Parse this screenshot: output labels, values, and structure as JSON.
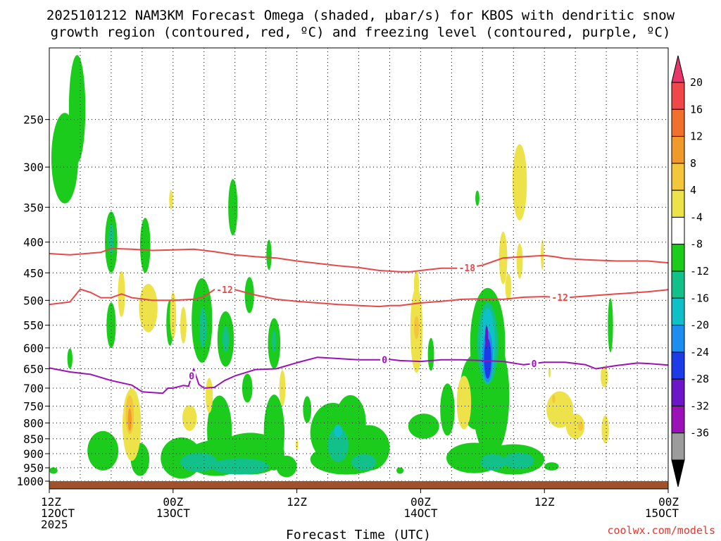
{
  "title_line1": "2025101212 NAM3KM Forecast Omega (shaded, μbar/s) for KBOS with dendritic snow",
  "title_line2": "growth region (contoured, red, ºC) and freezing level (contoured, purple, ºC)",
  "credit": "coolwx.com/models",
  "chart_data": {
    "type": "heatmap",
    "title": "2025101212 NAM3KM Forecast Omega (shaded, μbar/s) for KBOS with dendritic snow growth region (contoured, red, ºC) and freezing level (contoured, purple, ºC)",
    "xlabel": "Forecast Time (UTC)",
    "ylabel": "",
    "x_unit": "forecast hour",
    "xlim": [
      0,
      60
    ],
    "y_unit": "hPa",
    "ylim": [
      1030,
      190
    ],
    "y_scale": "log",
    "grid": true,
    "x_ticks": [
      {
        "hour": 0,
        "line1": "12Z",
        "line2": "12OCT",
        "line3": "2025"
      },
      {
        "hour": 12,
        "line1": "00Z",
        "line2": "13OCT",
        "line3": ""
      },
      {
        "hour": 24,
        "line1": "12Z",
        "line2": "",
        "line3": ""
      },
      {
        "hour": 36,
        "line1": "00Z",
        "line2": "14OCT",
        "line3": ""
      },
      {
        "hour": 48,
        "line1": "12Z",
        "line2": "",
        "line3": ""
      },
      {
        "hour": 60,
        "line1": "00Z",
        "line2": "15OCT",
        "line3": ""
      }
    ],
    "y_ticks": [
      250,
      300,
      350,
      400,
      450,
      500,
      550,
      600,
      650,
      700,
      750,
      800,
      850,
      900,
      950,
      1000
    ],
    "colorbar": {
      "unit": "μbar/s",
      "labels": [
        "20",
        "16",
        "12",
        "8",
        "4",
        "-4",
        "-8",
        "-12",
        "-16",
        "-20",
        "-24",
        "-28",
        "-32",
        "-36"
      ],
      "colors": [
        "#e8356a",
        "#f04848",
        "#f2702e",
        "#f09a2c",
        "#f4c63c",
        "#eee24a",
        "#ffffff",
        "#1ccc1c",
        "#12c08a",
        "#10c0c8",
        "#1c8ef0",
        "#1c3ce8",
        "#6c16c8",
        "#9c10b8",
        "#9c9c9c",
        "#000000"
      ]
    },
    "contours": [
      {
        "label": "-18",
        "color": "#e84848",
        "points": [
          [
            0,
            418
          ],
          [
            2,
            420
          ],
          [
            5,
            416
          ],
          [
            6,
            410
          ],
          [
            8,
            411
          ],
          [
            10,
            413
          ],
          [
            12,
            412
          ],
          [
            14,
            411
          ],
          [
            16,
            415
          ],
          [
            18,
            420
          ],
          [
            20,
            423
          ],
          [
            22,
            425
          ],
          [
            24,
            430
          ],
          [
            26,
            434
          ],
          [
            28,
            438
          ],
          [
            30,
            441
          ],
          [
            32,
            446
          ],
          [
            34,
            448
          ],
          [
            35,
            448
          ],
          [
            36,
            446
          ],
          [
            38,
            442
          ],
          [
            40,
            442
          ],
          [
            41,
            440
          ],
          [
            42,
            437
          ],
          [
            44,
            425
          ],
          [
            46,
            423
          ],
          [
            48,
            421
          ],
          [
            49,
            423
          ],
          [
            50,
            426
          ],
          [
            52,
            428
          ],
          [
            55,
            430
          ],
          [
            58,
            430
          ],
          [
            60,
            433
          ]
        ]
      },
      {
        "label": "-12",
        "color": "#e84848",
        "points": [
          [
            0,
            508
          ],
          [
            2,
            503
          ],
          [
            3,
            479
          ],
          [
            4,
            485
          ],
          [
            5,
            495
          ],
          [
            6,
            495
          ],
          [
            7,
            488
          ],
          [
            8,
            495
          ],
          [
            10,
            500
          ],
          [
            12,
            500
          ],
          [
            14,
            498
          ],
          [
            15,
            493
          ],
          [
            16,
            480
          ],
          [
            18,
            480
          ],
          [
            20,
            490
          ],
          [
            22,
            498
          ],
          [
            24,
            502
          ],
          [
            26,
            505
          ],
          [
            28,
            508
          ],
          [
            30,
            510
          ],
          [
            32,
            512
          ],
          [
            33,
            510
          ],
          [
            34,
            510
          ],
          [
            36,
            505
          ],
          [
            38,
            502
          ],
          [
            40,
            498
          ],
          [
            42,
            497
          ],
          [
            44,
            498
          ],
          [
            46,
            494
          ],
          [
            48,
            493
          ],
          [
            50,
            495
          ],
          [
            52,
            492
          ],
          [
            55,
            488
          ],
          [
            58,
            484
          ],
          [
            60,
            480
          ]
        ]
      },
      {
        "label": "0",
        "color": "#9c10b8",
        "points": [
          [
            0,
            648
          ],
          [
            2,
            658
          ],
          [
            4,
            664
          ],
          [
            6,
            680
          ],
          [
            8,
            692
          ],
          [
            9,
            710
          ],
          [
            10,
            712
          ],
          [
            11,
            714
          ],
          [
            11.5,
            700
          ],
          [
            12,
            700
          ],
          [
            13,
            693
          ],
          [
            13.5,
            695
          ],
          [
            14,
            650
          ],
          [
            14.5,
            690
          ],
          [
            15,
            700
          ],
          [
            16,
            698
          ],
          [
            17,
            680
          ],
          [
            18,
            668
          ],
          [
            20,
            652
          ],
          [
            22,
            650
          ],
          [
            24,
            635
          ],
          [
            26,
            622
          ],
          [
            28,
            625
          ],
          [
            30,
            628
          ],
          [
            32,
            628
          ],
          [
            33,
            627
          ],
          [
            34,
            630
          ],
          [
            36,
            632
          ],
          [
            38,
            628
          ],
          [
            40,
            628
          ],
          [
            42,
            630
          ],
          [
            44,
            632
          ],
          [
            46,
            640
          ],
          [
            48,
            634
          ],
          [
            50,
            634
          ],
          [
            52,
            640
          ],
          [
            53,
            650
          ],
          [
            55,
            642
          ],
          [
            57,
            636
          ],
          [
            58,
            637
          ],
          [
            60,
            641
          ]
        ]
      }
    ],
    "omega_regions": [
      {
        "value": -6,
        "hour": 1.5,
        "p": 290,
        "dh": 1.3,
        "dp": 55
      },
      {
        "value": -6,
        "hour": 2.7,
        "p": 240,
        "dh": 0.8,
        "dp": 55
      },
      {
        "value": -6,
        "hour": 6.0,
        "p": 400,
        "dh": 0.6,
        "dp": 50
      },
      {
        "value": -12,
        "hour": 6.0,
        "p": 395,
        "dh": 0.25,
        "dp": 25
      },
      {
        "value": -6,
        "hour": 9.3,
        "p": 405,
        "dh": 0.5,
        "dp": 45
      },
      {
        "value": -6,
        "hour": 17.8,
        "p": 350,
        "dh": 0.45,
        "dp": 40
      },
      {
        "value": -6,
        "hour": 21.3,
        "p": 420,
        "dh": 0.25,
        "dp": 25
      },
      {
        "value": -6,
        "hour": 6.0,
        "p": 550,
        "dh": 0.45,
        "dp": 50
      },
      {
        "value": -6,
        "hour": 11.7,
        "p": 545,
        "dh": 0.35,
        "dp": 50
      },
      {
        "value": -6,
        "hour": 14.8,
        "p": 540,
        "dh": 1.0,
        "dp": 95
      },
      {
        "value": -12,
        "hour": 14.9,
        "p": 555,
        "dh": 0.35,
        "dp": 45
      },
      {
        "value": -6,
        "hour": 17.1,
        "p": 580,
        "dh": 0.8,
        "dp": 65
      },
      {
        "value": -12,
        "hour": 17.1,
        "p": 580,
        "dh": 0.3,
        "dp": 30
      },
      {
        "value": -6,
        "hour": 19.4,
        "p": 490,
        "dh": 0.45,
        "dp": 35
      },
      {
        "value": -6,
        "hour": 19.2,
        "p": 700,
        "dh": 0.5,
        "dp": 40
      },
      {
        "value": -6,
        "hour": 21.8,
        "p": 590,
        "dh": 0.6,
        "dp": 60
      },
      {
        "value": -12,
        "hour": 21.8,
        "p": 585,
        "dh": 0.2,
        "dp": 25
      },
      {
        "value": -6,
        "hour": 2.0,
        "p": 625,
        "dh": 0.25,
        "dp": 25
      },
      {
        "value": -6,
        "hour": 37.0,
        "p": 615,
        "dh": 0.3,
        "dp": 40
      },
      {
        "value": -6,
        "hour": 5.2,
        "p": 890,
        "dh": 1.5,
        "dp": 70
      },
      {
        "value": -6,
        "hour": 8.8,
        "p": 920,
        "dh": 0.9,
        "dp": 60
      },
      {
        "value": -6,
        "hour": 0.4,
        "p": 960,
        "dh": 0.4,
        "dp": 12
      },
      {
        "value": -6,
        "hour": 12.8,
        "p": 915,
        "dh": 2.0,
        "dp": 75
      },
      {
        "value": -6,
        "hour": 16.2,
        "p": 915,
        "dh": 3.0,
        "dp": 65
      },
      {
        "value": -6,
        "hour": 16.5,
        "p": 825,
        "dh": 1.2,
        "dp": 120
      },
      {
        "value": -6,
        "hour": 19.5,
        "p": 900,
        "dh": 3.3,
        "dp": 75
      },
      {
        "value": -6,
        "hour": 21.8,
        "p": 830,
        "dh": 1.0,
        "dp": 130
      },
      {
        "value": -6,
        "hour": 23.0,
        "p": 945,
        "dh": 1.0,
        "dp": 40
      },
      {
        "value": -12,
        "hour": 14.5,
        "p": 930,
        "dh": 1.8,
        "dp": 35
      },
      {
        "value": -12,
        "hour": 18.5,
        "p": 945,
        "dh": 2.8,
        "dp": 30
      },
      {
        "value": -6,
        "hour": 27.5,
        "p": 830,
        "dh": 2.2,
        "dp": 100
      },
      {
        "value": -6,
        "hour": 29.2,
        "p": 800,
        "dh": 1.5,
        "dp": 90
      },
      {
        "value": -6,
        "hour": 28.8,
        "p": 920,
        "dh": 3.5,
        "dp": 55
      },
      {
        "value": -6,
        "hour": 25.0,
        "p": 760,
        "dh": 0.4,
        "dp": 40
      },
      {
        "value": -6,
        "hour": 31.0,
        "p": 880,
        "dh": 2.0,
        "dp": 80
      },
      {
        "value": -12,
        "hour": 28.0,
        "p": 870,
        "dh": 1.0,
        "dp": 60
      },
      {
        "value": -12,
        "hour": 30.5,
        "p": 930,
        "dh": 1.2,
        "dp": 30
      },
      {
        "value": -16,
        "hour": 28.0,
        "p": 825,
        "dh": 0.4,
        "dp": 20
      },
      {
        "value": -6,
        "hour": 34.0,
        "p": 960,
        "dh": 0.35,
        "dp": 12
      },
      {
        "value": -6,
        "hour": 36.3,
        "p": 810,
        "dh": 1.5,
        "dp": 40
      },
      {
        "value": -6,
        "hour": 38.6,
        "p": 760,
        "dh": 0.7,
        "dp": 80
      },
      {
        "value": -6,
        "hour": 41.3,
        "p": 710,
        "dh": 1.5,
        "dp": 110
      },
      {
        "value": -6,
        "hour": 42.8,
        "p": 720,
        "dh": 1.8,
        "dp": 190
      },
      {
        "value": -6,
        "hour": 41.2,
        "p": 915,
        "dh": 2.7,
        "dp": 55
      },
      {
        "value": -6,
        "hour": 45.0,
        "p": 920,
        "dh": 3.0,
        "dp": 55
      },
      {
        "value": -12,
        "hour": 43.0,
        "p": 930,
        "dh": 1.2,
        "dp": 30
      },
      {
        "value": -12,
        "hour": 45.5,
        "p": 925,
        "dh": 1.5,
        "dp": 30
      },
      {
        "value": -6,
        "hour": 41.5,
        "p": 338,
        "dh": 0.2,
        "dp": 10
      },
      {
        "value": -6,
        "hour": 48.7,
        "p": 945,
        "dh": 0.7,
        "dp": 15
      },
      {
        "value": -6,
        "hour": 54.4,
        "p": 550,
        "dh": 0.25,
        "dp": 60
      },
      {
        "value": -6,
        "hour": 42.5,
        "p": 590,
        "dh": 1.7,
        "dp": 140
      },
      {
        "value": -12,
        "hour": 42.5,
        "p": 590,
        "dh": 1.0,
        "dp": 100
      },
      {
        "value": -16,
        "hour": 42.5,
        "p": 590,
        "dh": 0.7,
        "dp": 85
      },
      {
        "value": -20,
        "hour": 42.5,
        "p": 620,
        "dh": 0.5,
        "dp": 65
      },
      {
        "value": -24,
        "hour": 42.5,
        "p": 625,
        "dh": 0.35,
        "dp": 50
      },
      {
        "value": -28,
        "hour": 42.4,
        "p": 575,
        "dh": 0.15,
        "dp": 25
      },
      {
        "value": 6,
        "hour": 11.8,
        "p": 340,
        "dh": 0.18,
        "dp": 13
      },
      {
        "value": 6,
        "hour": 7.0,
        "p": 488,
        "dh": 0.35,
        "dp": 45
      },
      {
        "value": 6,
        "hour": 9.6,
        "p": 515,
        "dh": 0.9,
        "dp": 50
      },
      {
        "value": 6,
        "hour": 12.0,
        "p": 530,
        "dh": 0.3,
        "dp": 50
      },
      {
        "value": 6,
        "hour": 13.0,
        "p": 550,
        "dh": 0.3,
        "dp": 40
      },
      {
        "value": 6,
        "hour": 13.6,
        "p": 785,
        "dh": 0.7,
        "dp": 40
      },
      {
        "value": 6,
        "hour": 15.5,
        "p": 720,
        "dh": 0.35,
        "dp": 50
      },
      {
        "value": 6,
        "hour": 22.6,
        "p": 700,
        "dh": 0.3,
        "dp": 50
      },
      {
        "value": 6,
        "hour": 24.0,
        "p": 870,
        "dh": 0.12,
        "dp": 18
      },
      {
        "value": 6,
        "hour": 8.0,
        "p": 805,
        "dh": 0.9,
        "dp": 120
      },
      {
        "value": 10,
        "hour": 7.8,
        "p": 775,
        "dh": 0.4,
        "dp": 60
      },
      {
        "value": 14,
        "hour": 7.8,
        "p": 790,
        "dh": 0.18,
        "dp": 35
      },
      {
        "value": 6,
        "hour": 35.6,
        "p": 560,
        "dh": 0.6,
        "dp": 100
      },
      {
        "value": 10,
        "hour": 35.6,
        "p": 555,
        "dh": 0.25,
        "dp": 25
      },
      {
        "value": 6,
        "hour": 35.6,
        "p": 470,
        "dh": 0.25,
        "dp": 25
      },
      {
        "value": 6,
        "hour": 40.2,
        "p": 740,
        "dh": 0.7,
        "dp": 80
      },
      {
        "value": 6,
        "hour": 44.0,
        "p": 425,
        "dh": 0.4,
        "dp": 45
      },
      {
        "value": 6,
        "hour": 44.5,
        "p": 475,
        "dh": 0.3,
        "dp": 25
      },
      {
        "value": 6,
        "hour": 45.6,
        "p": 318,
        "dh": 0.7,
        "dp": 50
      },
      {
        "value": 6,
        "hour": 45.6,
        "p": 430,
        "dh": 0.3,
        "dp": 30
      },
      {
        "value": 6,
        "hour": 47.8,
        "p": 420,
        "dh": 0.15,
        "dp": 25
      },
      {
        "value": 6,
        "hour": 49.5,
        "p": 760,
        "dh": 1.3,
        "dp": 55
      },
      {
        "value": 6,
        "hour": 51.0,
        "p": 810,
        "dh": 0.9,
        "dp": 40
      },
      {
        "value": 10,
        "hour": 51.5,
        "p": 810,
        "dh": 0.25,
        "dp": 15
      },
      {
        "value": 10,
        "hour": 48.9,
        "p": 730,
        "dh": 0.15,
        "dp": 12
      },
      {
        "value": 6,
        "hour": 53.9,
        "p": 820,
        "dh": 0.35,
        "dp": 45
      },
      {
        "value": 6,
        "hour": 53.8,
        "p": 670,
        "dh": 0.35,
        "dp": 28
      },
      {
        "value": 6,
        "hour": 48.5,
        "p": 660,
        "dh": 0.12,
        "dp": 12
      }
    ]
  }
}
